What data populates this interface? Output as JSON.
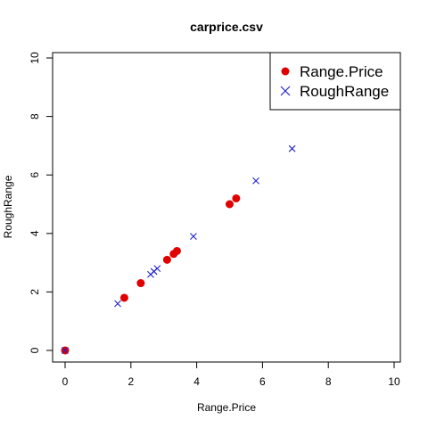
{
  "chart_data": {
    "type": "scatter",
    "title": "carprice.csv",
    "xlabel": "Range.Price",
    "ylabel": "RoughRange",
    "xlim": [
      0,
      10
    ],
    "ylim": [
      0,
      10
    ],
    "x_ticks": [
      0,
      2,
      4,
      6,
      8,
      10
    ],
    "y_ticks": [
      0,
      2,
      4,
      6,
      8,
      10
    ],
    "legend_position": "top-right",
    "series": [
      {
        "name": "Range.Price",
        "marker": "filled-circle",
        "color": "#e00000",
        "points": [
          [
            0,
            0
          ],
          [
            1.8,
            1.8
          ],
          [
            2.3,
            2.3
          ],
          [
            3.1,
            3.1
          ],
          [
            3.3,
            3.3
          ],
          [
            3.4,
            3.4
          ],
          [
            5.0,
            5.0
          ],
          [
            5.2,
            5.2
          ]
        ]
      },
      {
        "name": "RoughRange",
        "marker": "cross",
        "color": "#2222cc",
        "points": [
          [
            0,
            0
          ],
          [
            1.6,
            1.6
          ],
          [
            2.6,
            2.6
          ],
          [
            2.7,
            2.7
          ],
          [
            2.8,
            2.8
          ],
          [
            3.9,
            3.9
          ],
          [
            5.8,
            5.8
          ],
          [
            6.9,
            6.9
          ]
        ]
      }
    ]
  }
}
